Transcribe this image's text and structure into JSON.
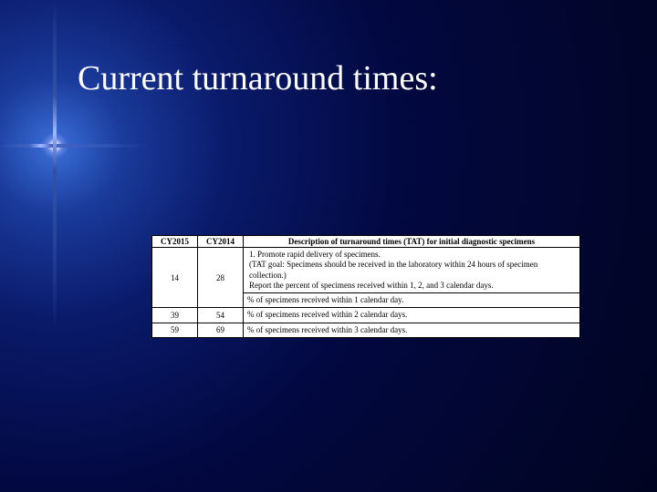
{
  "title": "Current turnaround times:",
  "table": {
    "headers": {
      "col1": "CY2015",
      "col2": "CY2014",
      "col3": "Description of turnaround times (TAT) for initial diagnostic specimens"
    },
    "intro": "Promote rapid delivery of specimens.\n(TAT goal: Specimens should be received in the laboratory within 24 hours of specimen collection.)\nReport the percent of specimens received within 1, 2, and 3 calendar days.",
    "rows": [
      {
        "cy2015": "14",
        "cy2014": "28",
        "desc": "% of specimens received within 1 calendar day."
      },
      {
        "cy2015": "39",
        "cy2014": "54",
        "desc": "% of specimens received within 2 calendar days."
      },
      {
        "cy2015": "59",
        "cy2014": "69",
        "desc": "% of specimens received within 3 calendar days."
      }
    ]
  },
  "styling": {
    "background_gradient_center": "#3a6fd8",
    "background_gradient_mid": "#0a1a6a",
    "background_gradient_outer": "#010420",
    "title_color": "#ffffff",
    "title_fontsize": 38,
    "table_bg": "#ffffff",
    "table_border": "#000000",
    "table_fontsize": 9,
    "font_family": "Times New Roman"
  }
}
